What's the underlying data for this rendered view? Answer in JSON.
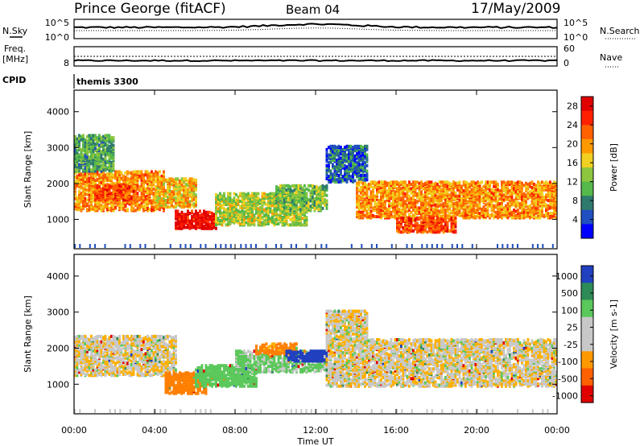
{
  "header": {
    "station": "Prince George (fitACF)",
    "beam": "Beam 04",
    "date": "17/May/2009"
  },
  "strips": {
    "nsky": {
      "left_label": "N.Sky",
      "right_label": "N.Search",
      "left_ticks": [
        "10^5",
        "10^0"
      ],
      "right_ticks": [
        "10^5",
        "10^0"
      ]
    },
    "freq": {
      "left_label_line1": "Freq.",
      "left_label_line2": "[MHz]",
      "right_label": "Nave",
      "left_ticks": [
        "",
        "8"
      ],
      "right_ticks": [
        "60",
        "0"
      ]
    },
    "cpid": {
      "label": "CPID",
      "value": "themis 3300"
    }
  },
  "chart_data": [
    {
      "type": "heatmap",
      "parameter": "power",
      "ylabel": "Slant Range [km]",
      "xlabel": "Time UT",
      "x_ticks": [
        "00:00",
        "04:00",
        "08:00",
        "12:00",
        "16:00",
        "20:00",
        "00:00"
      ],
      "xlim_hours": [
        0,
        24
      ],
      "y_ticks": [
        1000,
        2000,
        3000,
        4000
      ],
      "ylim": [
        180,
        4600
      ],
      "colorbar": {
        "label": "Power [dB]",
        "ticks": [
          4,
          8,
          12,
          16,
          20,
          24,
          28
        ],
        "range": [
          0,
          30
        ],
        "colors": [
          "#0000ff",
          "#1f4fc0",
          "#2e7b6e",
          "#55b84a",
          "#8dc63f",
          "#f0d020",
          "#ff9900",
          "#ff6000",
          "#ff2000",
          "#e00000"
        ]
      },
      "bands": [
        {
          "t0": 0.0,
          "t1": 4.5,
          "r0": 1200,
          "r1": 2300,
          "level": 20
        },
        {
          "t0": 1.0,
          "t1": 3.0,
          "r0": 1500,
          "r1": 1900,
          "level": 24
        },
        {
          "t0": 5.0,
          "t1": 7.0,
          "r0": 700,
          "r1": 1200,
          "level": 28
        },
        {
          "t0": 4.0,
          "t1": 6.0,
          "r0": 1300,
          "r1": 2100,
          "level": 18
        },
        {
          "t0": 7.0,
          "t1": 11.5,
          "r0": 800,
          "r1": 1700,
          "level": 14
        },
        {
          "t0": 10.0,
          "t1": 12.5,
          "r0": 1200,
          "r1": 1900,
          "level": 12
        },
        {
          "t0": 12.5,
          "t1": 14.5,
          "r0": 2000,
          "r1": 3000,
          "level": 6
        },
        {
          "t0": 14.0,
          "t1": 24.0,
          "r0": 1000,
          "r1": 2000,
          "level": 20
        },
        {
          "t0": 16.0,
          "t1": 19.0,
          "r0": 600,
          "r1": 1000,
          "level": 24
        },
        {
          "t0": 0.0,
          "t1": 2.0,
          "r0": 2300,
          "r1": 3300,
          "level": 10
        }
      ]
    },
    {
      "type": "heatmap",
      "parameter": "velocity",
      "ylabel": "Slant Range [km]",
      "xlabel": "Time UT",
      "x_ticks": [
        "00:00",
        "04:00",
        "08:00",
        "12:00",
        "16:00",
        "20:00",
        "00:00"
      ],
      "xlim_hours": [
        0,
        24
      ],
      "y_ticks": [
        1000,
        2000,
        3000,
        4000
      ],
      "ylim": [
        180,
        4600
      ],
      "colorbar": {
        "label": "Velocity [m s-1]",
        "ticks": [
          1000,
          500,
          100,
          25,
          -25,
          -100,
          -500,
          -1000
        ],
        "colors": [
          "#2040c0",
          "#2e8b57",
          "#5ac85a",
          "#c8c8c8",
          "#c8c8c8",
          "#ff9900",
          "#ff6000",
          "#e00000"
        ]
      },
      "bands": [
        {
          "t0": 0.0,
          "t1": 5.0,
          "r0": 1200,
          "r1": 2300,
          "level": 0
        },
        {
          "t0": 4.5,
          "t1": 6.5,
          "r0": 700,
          "r1": 1300,
          "level": -300
        },
        {
          "t0": 6.0,
          "t1": 9.0,
          "r0": 900,
          "r1": 1500,
          "level": 150
        },
        {
          "t0": 8.0,
          "t1": 12.5,
          "r0": 1300,
          "r1": 1900,
          "level": 90
        },
        {
          "t0": 9.0,
          "t1": 11.0,
          "r0": 1800,
          "r1": 2100,
          "level": -150
        },
        {
          "t0": 10.5,
          "t1": 12.5,
          "r0": 1600,
          "r1": 1900,
          "level": 800
        },
        {
          "t0": 12.5,
          "t1": 24.0,
          "r0": 900,
          "r1": 2200,
          "level": 0
        },
        {
          "t0": 12.5,
          "t1": 14.5,
          "r0": 2200,
          "r1": 3000,
          "level": 0
        }
      ]
    }
  ]
}
